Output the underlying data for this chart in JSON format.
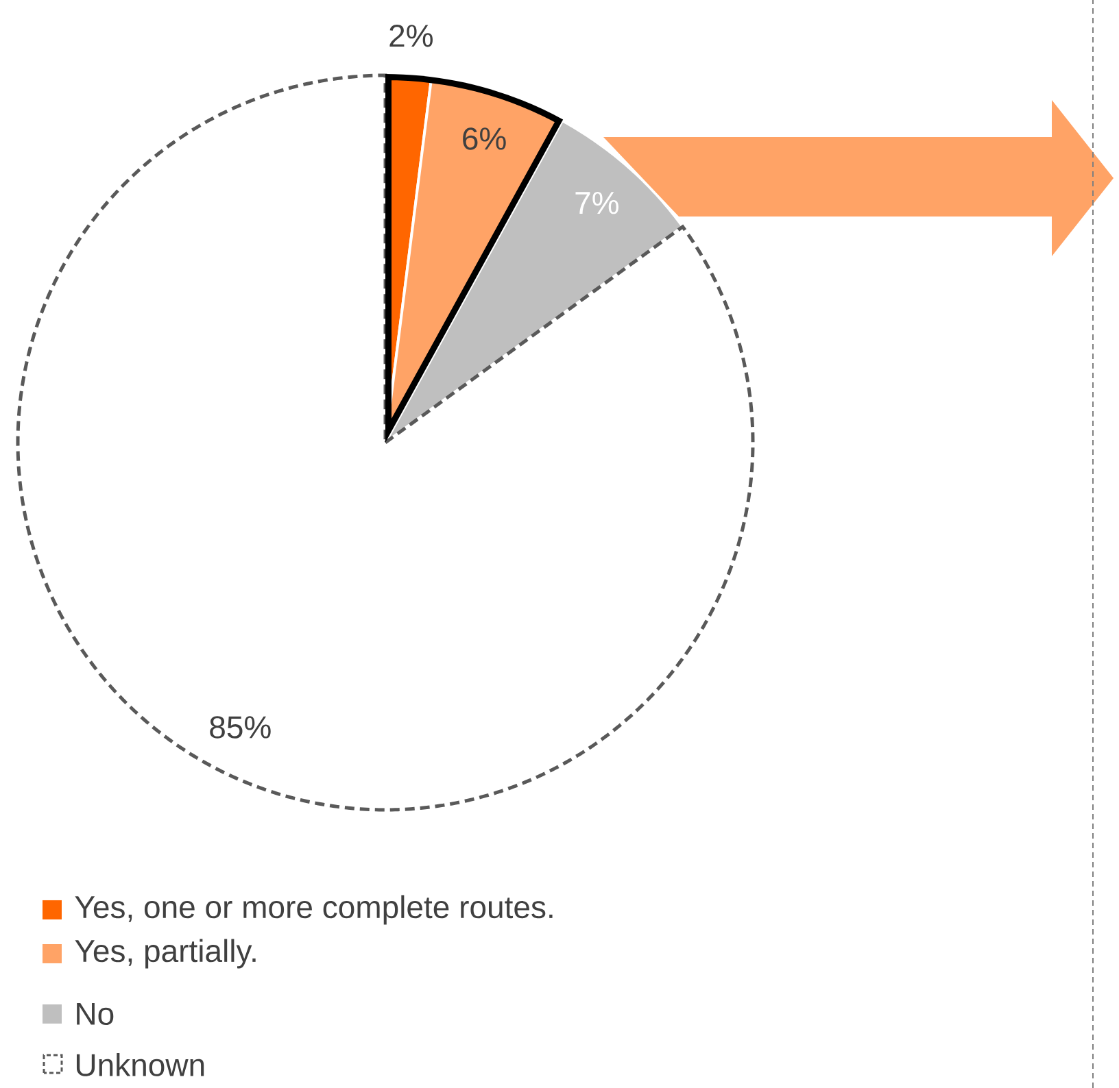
{
  "chart_data": {
    "type": "pie",
    "categories": [
      "Yes, one or more complete routes.",
      "Yes, partially.",
      "No",
      "Unknown"
    ],
    "values": [
      2,
      6,
      7,
      85
    ],
    "colors": [
      "#ff6600",
      "#ffa366",
      "#bfbfbf",
      "#ffffff"
    ],
    "value_labels": [
      "2%",
      "6%",
      "7%",
      "85%"
    ],
    "legend": "bottom left"
  }
}
